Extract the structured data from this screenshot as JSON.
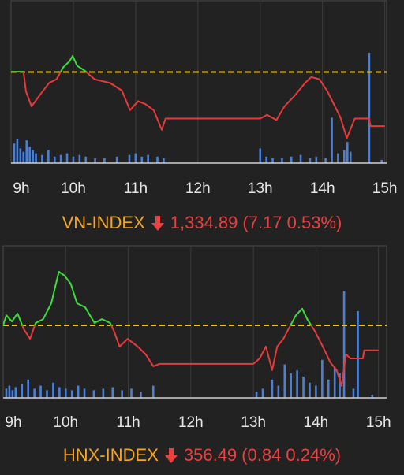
{
  "chart_data": [
    {
      "type": "intraday",
      "index_name": "VN-INDEX",
      "last": "1,334.89",
      "change": "(7.17 0.53%)",
      "xlim": [
        9,
        15.03
      ],
      "xticks": [
        {
          "value": 9,
          "label": "9h"
        },
        {
          "value": 10,
          "label": "10h"
        },
        {
          "value": 11,
          "label": "11h"
        },
        {
          "value": 12,
          "label": "12h"
        },
        {
          "value": 13,
          "label": "13h"
        },
        {
          "value": 14,
          "label": "14h"
        },
        {
          "value": 15,
          "label": "15h"
        }
      ],
      "ylim": [
        1330,
        1351.5
      ],
      "reference": 1342.06,
      "up_color": "#3ddc3d",
      "down_color": "#e83a3a",
      "reference_color": "#f0c419",
      "x": [
        9.0,
        9.2,
        9.24,
        9.33,
        9.46,
        9.61,
        9.73,
        9.84,
        9.94,
        9.99,
        10.06,
        10.19,
        10.34,
        10.59,
        10.78,
        10.91,
        11.04,
        11.16,
        11.29,
        11.42,
        11.48,
        11.5,
        13.0,
        13.11,
        13.26,
        13.39,
        13.56,
        13.72,
        13.82,
        13.95,
        14.08,
        14.2,
        14.29,
        14.39,
        14.52,
        14.75,
        14.77,
        15.0
      ],
      "values": [
        1342.1,
        1342.1,
        1339.5,
        1337.5,
        1339.0,
        1340.6,
        1341.1,
        1342.7,
        1343.5,
        1344.2,
        1342.9,
        1342.2,
        1341.1,
        1340.6,
        1339.6,
        1337.0,
        1338.2,
        1337.8,
        1337.0,
        1334.4,
        1335.9,
        1335.9,
        1335.9,
        1336.4,
        1335.7,
        1337.5,
        1339.0,
        1340.6,
        1341.4,
        1341.1,
        1339.5,
        1337.5,
        1336.0,
        1333.3,
        1335.9,
        1335.9,
        1334.9,
        1334.9
      ],
      "volume": {
        "color": "#4a80d8",
        "y2lim": [
          0,
          100
        ],
        "x": [
          9.05,
          9.1,
          9.15,
          9.2,
          9.25,
          9.3,
          9.35,
          9.4,
          9.5,
          9.6,
          9.7,
          9.8,
          9.9,
          10.0,
          10.1,
          10.2,
          10.35,
          10.5,
          10.7,
          10.9,
          11.0,
          11.1,
          11.2,
          11.35,
          11.45,
          13.0,
          13.1,
          13.2,
          13.35,
          13.5,
          13.65,
          13.8,
          13.9,
          14.05,
          14.15,
          14.25,
          14.35,
          14.4,
          14.45,
          14.75,
          14.95
        ],
        "values": [
          12,
          15,
          9,
          7,
          14,
          10,
          8,
          6,
          5,
          8,
          4,
          5,
          6,
          4,
          5,
          4,
          3,
          3,
          4,
          5,
          6,
          4,
          5,
          4,
          3,
          9,
          4,
          3,
          3,
          4,
          5,
          3,
          4,
          3,
          28,
          6,
          8,
          13,
          7,
          68,
          2
        ]
      }
    },
    {
      "type": "intraday",
      "index_name": "HNX-INDEX",
      "last": "356.49",
      "change": "(0.84 0.24%)",
      "xlim": [
        9,
        15.13
      ],
      "xticks": [
        {
          "value": 9,
          "label": "9h"
        },
        {
          "value": 10,
          "label": "10h"
        },
        {
          "value": 11,
          "label": "11h"
        },
        {
          "value": 12,
          "label": "12h"
        },
        {
          "value": 13,
          "label": "13h"
        },
        {
          "value": 14,
          "label": "14h"
        },
        {
          "value": 15,
          "label": "15h"
        }
      ],
      "ylim": [
        354.9,
        360.0
      ],
      "reference": 357.33,
      "up_color": "#3ddc3d",
      "down_color": "#e83a3a",
      "reference_color": "#f0c419",
      "x": [
        9.0,
        9.05,
        9.14,
        9.23,
        9.33,
        9.43,
        9.52,
        9.64,
        9.77,
        9.89,
        9.98,
        10.08,
        10.18,
        10.31,
        10.46,
        10.58,
        10.71,
        10.77,
        10.86,
        10.99,
        11.15,
        11.28,
        11.4,
        11.5,
        13.0,
        13.1,
        13.2,
        13.3,
        13.38,
        13.48,
        13.58,
        13.68,
        13.78,
        13.86,
        13.98,
        14.11,
        14.23,
        14.33,
        14.41,
        14.48,
        14.55,
        14.75,
        14.77,
        15.0
      ],
      "values": [
        357.33,
        357.67,
        357.46,
        357.73,
        357.2,
        356.88,
        357.41,
        357.54,
        358.07,
        359.13,
        359.0,
        358.73,
        358.07,
        357.94,
        357.41,
        357.54,
        357.41,
        357.15,
        356.62,
        356.88,
        356.62,
        356.35,
        355.96,
        356.04,
        356.04,
        356.22,
        356.62,
        355.83,
        356.62,
        356.88,
        357.28,
        357.67,
        357.89,
        357.54,
        357.15,
        356.62,
        356.09,
        355.83,
        355.3,
        356.36,
        356.22,
        356.22,
        356.49,
        356.49
      ],
      "volume": {
        "color": "#4a80d8",
        "y2lim": [
          0,
          100
        ],
        "x": [
          9.05,
          9.1,
          9.15,
          9.2,
          9.3,
          9.4,
          9.5,
          9.6,
          9.7,
          9.8,
          9.9,
          10.0,
          10.1,
          10.2,
          10.3,
          10.45,
          10.6,
          10.75,
          10.9,
          11.05,
          11.2,
          11.4,
          13.05,
          13.15,
          13.3,
          13.4,
          13.5,
          13.6,
          13.7,
          13.8,
          13.9,
          14.0,
          14.1,
          14.2,
          14.3,
          14.38,
          14.45,
          14.6,
          14.67,
          14.9
        ],
        "values": [
          6,
          8,
          5,
          7,
          9,
          12,
          6,
          8,
          5,
          10,
          7,
          6,
          5,
          8,
          6,
          5,
          6,
          7,
          5,
          6,
          4,
          8,
          4,
          6,
          12,
          8,
          22,
          16,
          18,
          14,
          10,
          8,
          25,
          12,
          20,
          16,
          70,
          6,
          57,
          2
        ]
      }
    }
  ]
}
